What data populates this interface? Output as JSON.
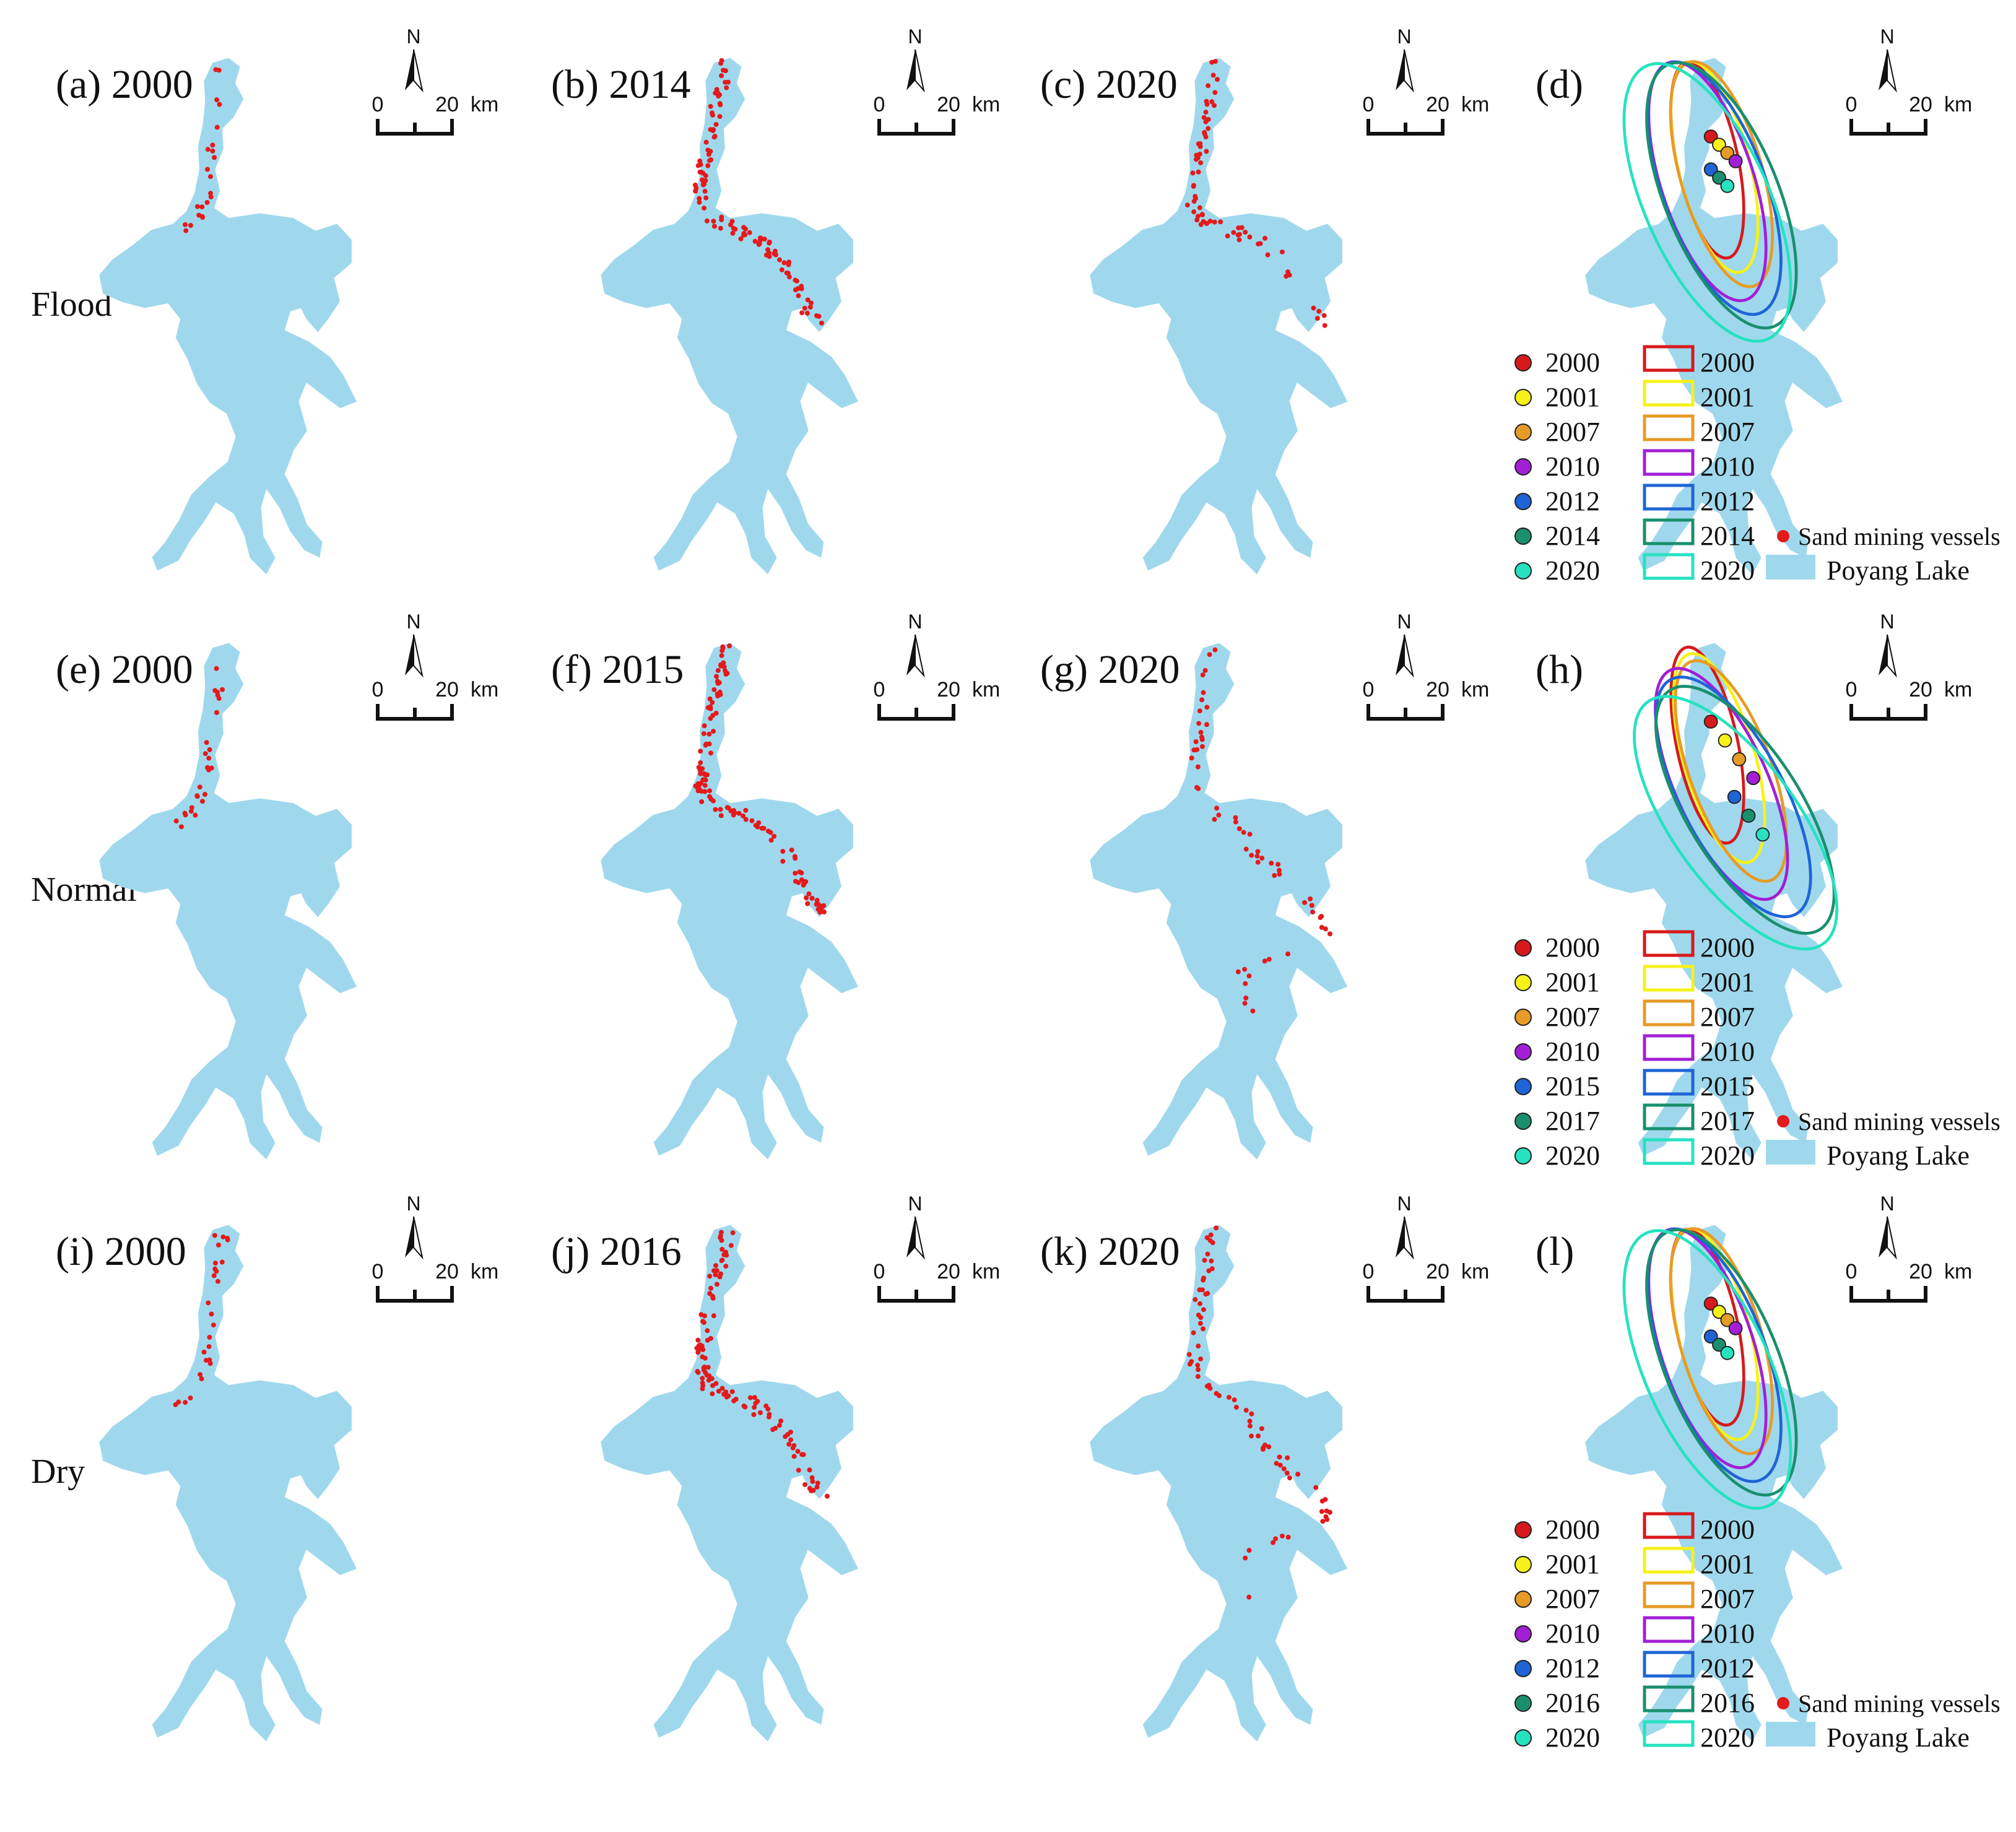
{
  "rows": [
    {
      "label": "Flood",
      "panels": [
        {
          "label": "(a) 2000",
          "seed": 11,
          "density": 22,
          "region": "north"
        },
        {
          "label": "(b) 2014",
          "seed": 23,
          "density": 110,
          "region": "mid"
        },
        {
          "label": "(c) 2020",
          "seed": 37,
          "density": 70,
          "region": "mid2"
        },
        {
          "label": "(d)"
        }
      ]
    },
    {
      "label": "Normal",
      "panels": [
        {
          "label": "(e) 2000",
          "seed": 41,
          "density": 26,
          "region": "north"
        },
        {
          "label": "(f) 2015",
          "seed": 53,
          "density": 120,
          "region": "mid"
        },
        {
          "label": "(g) 2020",
          "seed": 67,
          "density": 60,
          "region": "south"
        },
        {
          "label": "(h)"
        }
      ]
    },
    {
      "label": "Dry",
      "panels": [
        {
          "label": "(i) 2000",
          "seed": 71,
          "density": 26,
          "region": "north"
        },
        {
          "label": "(j) 2016",
          "seed": 83,
          "density": 110,
          "region": "mid"
        },
        {
          "label": "(k) 2020",
          "seed": 97,
          "density": 75,
          "region": "south"
        },
        {
          "label": "(l)"
        }
      ]
    }
  ],
  "scale_bar": {
    "north": "N",
    "zero": "0",
    "twenty": "20",
    "unit": "km"
  },
  "legend_common": {
    "vessels": "Sand mining vessels",
    "lake": "Poyang Lake"
  },
  "legends": [
    [
      "2000",
      "2001",
      "2007",
      "2010",
      "2012",
      "2014",
      "2020"
    ],
    [
      "2000",
      "2001",
      "2007",
      "2010",
      "2015",
      "2017",
      "2020"
    ],
    [
      "2000",
      "2001",
      "2007",
      "2010",
      "2012",
      "2016",
      "2020"
    ]
  ],
  "year_colors": [
    "#d7191c",
    "#f7f11a",
    "#e69b26",
    "#a21fd6",
    "#1f64d6",
    "#1a8f6e",
    "#26e2c0"
  ],
  "colors": {
    "lake": "#9fd8ed",
    "vessel": "#e31a1c",
    "text": "#111111"
  }
}
